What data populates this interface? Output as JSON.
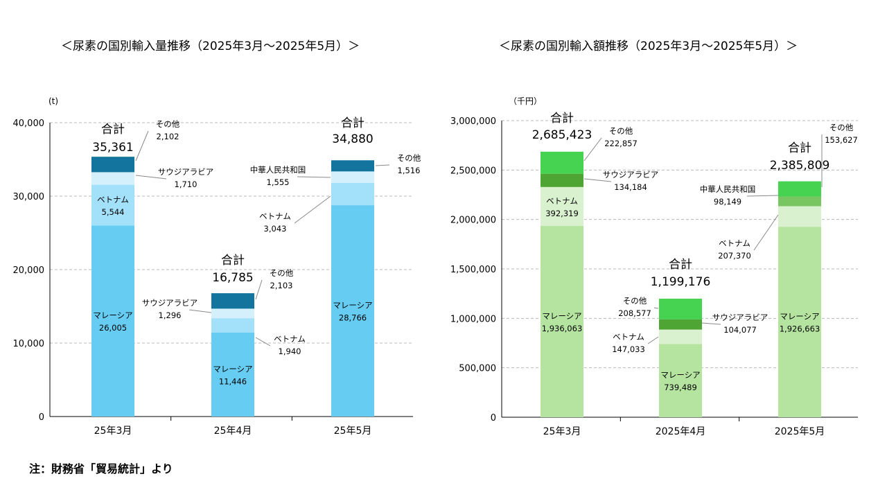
{
  "footnote": "注：財務省「貿易統計」より",
  "chart_data": [
    {
      "type": "bar",
      "stacked": true,
      "title": "＜尿素の国別輸入量推移（2025年3月～2025年5月）＞",
      "unit": "(t)",
      "categories": [
        "25年3月",
        "25年4月",
        "25年5月"
      ],
      "ylim": [
        0,
        40000
      ],
      "yticks": [
        0,
        10000,
        20000,
        30000,
        40000
      ],
      "ytick_labels": [
        "0",
        "10,000",
        "20,000",
        "30,000",
        "40,000"
      ],
      "grid": true,
      "total_label": "合計",
      "totals": [
        35361,
        16785,
        34880
      ],
      "series": [
        {
          "name": "マレーシア",
          "color": "#66ccf2",
          "values": [
            26005,
            11446,
            28766
          ]
        },
        {
          "name": "ベトナム",
          "color": "#a3e0fa",
          "values": [
            5544,
            1940,
            3043
          ]
        },
        {
          "name": "サウジアラビア",
          "color": "#d4f0fc",
          "values": [
            1710,
            1296,
            0
          ]
        },
        {
          "name": "中華人民共和国",
          "color": "#d4f0fc",
          "values": [
            0,
            0,
            1555
          ]
        },
        {
          "name": "その他",
          "color": "#13759e",
          "values": [
            2102,
            2103,
            1516
          ]
        }
      ]
    },
    {
      "type": "bar",
      "stacked": true,
      "title": "＜尿素の国別輸入額推移（2025年3月～2025年5月）＞",
      "unit": "（千円）",
      "categories": [
        "25年3月",
        "2025年4月",
        "2025年5月"
      ],
      "ylim": [
        0,
        3000000
      ],
      "yticks": [
        0,
        500000,
        1000000,
        1500000,
        2000000,
        2500000,
        3000000
      ],
      "ytick_labels": [
        "0",
        "500,000",
        "1,000,000",
        "1,500,000",
        "2,000,000",
        "2,500,000",
        "3,000,000"
      ],
      "grid": true,
      "total_label": "合計",
      "totals": [
        2685423,
        1199176,
        2385809
      ],
      "series": [
        {
          "name": "マレーシア",
          "color": "#b5e4a0",
          "values": [
            1936063,
            739489,
            1926663
          ]
        },
        {
          "name": "ベトナム",
          "color": "#d9f1cf",
          "values": [
            392319,
            147033,
            207370
          ]
        },
        {
          "name": "サウジアラビア",
          "color": "#4ea534",
          "values": [
            134184,
            104077,
            0
          ]
        },
        {
          "name": "中華人民共和国",
          "color": "#78c661",
          "values": [
            0,
            0,
            98149
          ]
        },
        {
          "name": "その他",
          "color": "#47d352",
          "values": [
            222857,
            208577,
            153627
          ]
        }
      ]
    }
  ]
}
